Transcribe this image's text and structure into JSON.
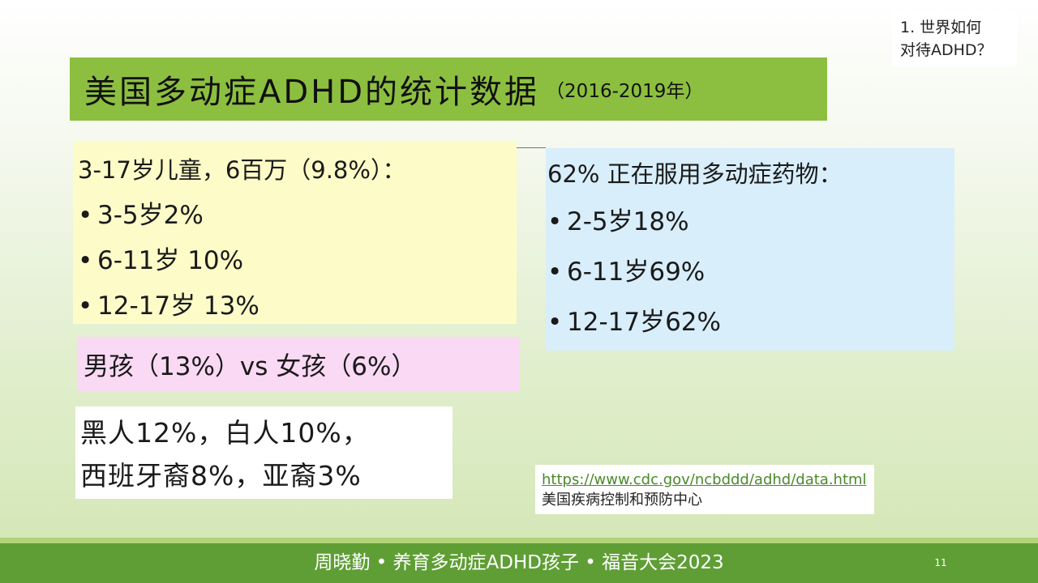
{
  "corner_note": {
    "line1": "1. 世界如何",
    "line2": "对待ADHD？"
  },
  "title": {
    "main": "美国多动症ADHD的统计数据",
    "years": "（2016-2019年）"
  },
  "children_stats": {
    "heading": "3-17岁儿童，6百万（9.8%）：",
    "items": [
      "3-5岁2%",
      "6-11岁 10%",
      "12-17岁 13%"
    ]
  },
  "medication_stats": {
    "heading": "62% 正在服用多动症药物：",
    "items": [
      "2-5岁18%",
      "6-11岁69%",
      "12-17岁62%"
    ]
  },
  "gender_stats": "男孩（13%）vs 女孩（6%）",
  "ethnicity_stats": {
    "line1": "黑人12%，白人10%，",
    "line2": "西班牙裔8%，亚裔3%"
  },
  "source": {
    "url": "https://www.cdc.gov/ncbddd/adhd/data.html",
    "org": "美国疾病控制和预防中心"
  },
  "footer": {
    "text": "周晓勤 • 养育多动症ADHD孩子 • 福音大会2023",
    "page_number": "11"
  },
  "colors": {
    "title_banner": "#8cbf3f",
    "yellow_box": "#fdfcc8",
    "blue_box": "#d8eefb",
    "pink_box": "#fad9f4",
    "footer_bar": "#5f9e35",
    "link": "#4a8a2a"
  }
}
